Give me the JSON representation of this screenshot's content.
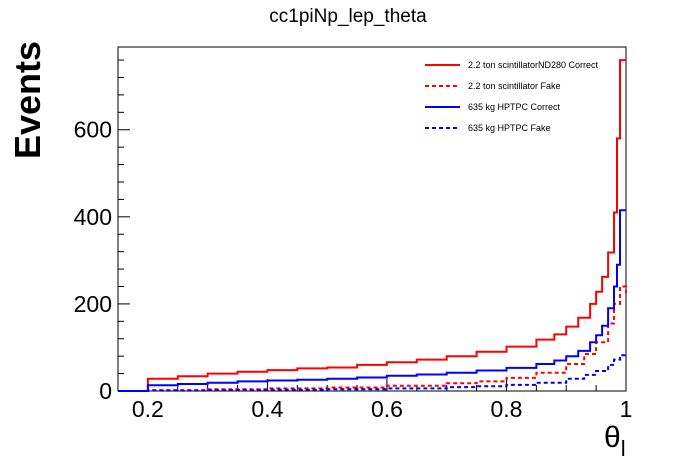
{
  "chart_data": {
    "type": "line",
    "title": "cc1piNp_lep_theta",
    "xlabel": "θ",
    "xlabel_sub": "l",
    "ylabel": "Events",
    "xlim": [
      0.15,
      1.0
    ],
    "ylim": [
      0,
      790
    ],
    "x_ticks": [
      0.2,
      0.4,
      0.6,
      0.8,
      1.0
    ],
    "x_tick_labels": [
      "0.2",
      "0.4",
      "0.6",
      "0.8",
      "1"
    ],
    "y_ticks": [
      0,
      200,
      400,
      600
    ],
    "y_tick_labels": [
      "0",
      "200",
      "400",
      "600"
    ],
    "grid": false,
    "legend_position": "top-right",
    "colors": {
      "red": "#ff0000",
      "blue": "#0000ff"
    },
    "series": [
      {
        "name": "2.2 ton scintillatorND280 Correct",
        "color": "#ff0000",
        "dash": "solid",
        "points": [
          [
            0.15,
            0
          ],
          [
            0.2,
            0
          ],
          [
            0.2,
            28
          ],
          [
            0.25,
            34
          ],
          [
            0.3,
            40
          ],
          [
            0.35,
            44
          ],
          [
            0.4,
            48
          ],
          [
            0.45,
            52
          ],
          [
            0.5,
            54
          ],
          [
            0.55,
            60
          ],
          [
            0.6,
            66
          ],
          [
            0.65,
            72
          ],
          [
            0.7,
            80
          ],
          [
            0.75,
            90
          ],
          [
            0.8,
            102
          ],
          [
            0.85,
            118
          ],
          [
            0.88,
            130
          ],
          [
            0.9,
            148
          ],
          [
            0.92,
            168
          ],
          [
            0.94,
            200
          ],
          [
            0.95,
            228
          ],
          [
            0.96,
            262
          ],
          [
            0.97,
            318
          ],
          [
            0.98,
            410
          ],
          [
            0.985,
            580
          ],
          [
            0.99,
            760
          ],
          [
            1.0,
            760
          ]
        ]
      },
      {
        "name": "2.2 ton scintillator Fake",
        "color": "#ff0000",
        "dash": "dashed",
        "points": [
          [
            0.15,
            0
          ],
          [
            0.2,
            0
          ],
          [
            0.2,
            2
          ],
          [
            0.3,
            4
          ],
          [
            0.4,
            6
          ],
          [
            0.5,
            8
          ],
          [
            0.6,
            12
          ],
          [
            0.7,
            18
          ],
          [
            0.75,
            22
          ],
          [
            0.8,
            30
          ],
          [
            0.85,
            42
          ],
          [
            0.9,
            62
          ],
          [
            0.93,
            85
          ],
          [
            0.95,
            112
          ],
          [
            0.97,
            155
          ],
          [
            0.98,
            200
          ],
          [
            0.99,
            240
          ],
          [
            1.0,
            225
          ]
        ]
      },
      {
        "name": "635 kg HPTPC Correct",
        "color": "#0000ff",
        "dash": "solid",
        "points": [
          [
            0.15,
            0
          ],
          [
            0.2,
            0
          ],
          [
            0.2,
            13
          ],
          [
            0.25,
            16
          ],
          [
            0.3,
            19
          ],
          [
            0.35,
            22
          ],
          [
            0.4,
            24
          ],
          [
            0.45,
            26
          ],
          [
            0.5,
            28
          ],
          [
            0.55,
            31
          ],
          [
            0.6,
            35
          ],
          [
            0.65,
            38
          ],
          [
            0.7,
            42
          ],
          [
            0.75,
            47
          ],
          [
            0.8,
            53
          ],
          [
            0.85,
            62
          ],
          [
            0.88,
            70
          ],
          [
            0.9,
            80
          ],
          [
            0.92,
            92
          ],
          [
            0.94,
            112
          ],
          [
            0.95,
            128
          ],
          [
            0.96,
            150
          ],
          [
            0.97,
            190
          ],
          [
            0.98,
            240
          ],
          [
            0.985,
            290
          ],
          [
            0.99,
            415
          ],
          [
            1.0,
            415
          ]
        ]
      },
      {
        "name": "635 kg HPTPC Fake",
        "color": "#0000ff",
        "dash": "dashed",
        "points": [
          [
            0.15,
            0
          ],
          [
            0.2,
            0
          ],
          [
            0.2,
            1
          ],
          [
            0.3,
            2
          ],
          [
            0.4,
            3
          ],
          [
            0.5,
            4
          ],
          [
            0.6,
            6
          ],
          [
            0.7,
            9
          ],
          [
            0.75,
            11
          ],
          [
            0.8,
            14
          ],
          [
            0.85,
            19
          ],
          [
            0.9,
            28
          ],
          [
            0.93,
            37
          ],
          [
            0.95,
            46
          ],
          [
            0.97,
            60
          ],
          [
            0.98,
            72
          ],
          [
            0.99,
            82
          ],
          [
            1.0,
            78
          ]
        ]
      }
    ]
  }
}
